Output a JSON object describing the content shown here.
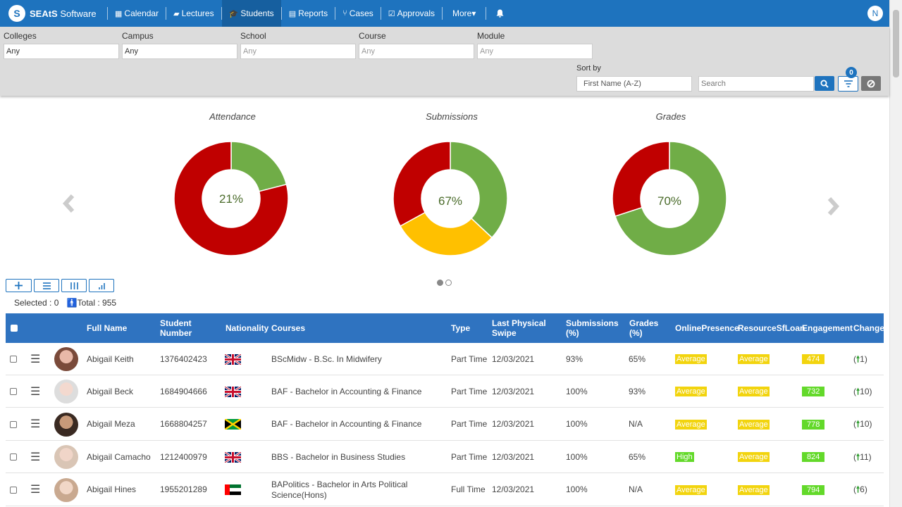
{
  "app": {
    "logo_bold": "SEAtS",
    "logo_rest": " Software",
    "user_initial": "N"
  },
  "nav": [
    {
      "icon": "calendar-icon",
      "glyph": "▦",
      "label": "Calendar"
    },
    {
      "icon": "lectures-icon",
      "glyph": "▰",
      "label": "Lectures"
    },
    {
      "icon": "students-icon",
      "glyph": "🎓",
      "label": "Students"
    },
    {
      "icon": "reports-icon",
      "glyph": "▤",
      "label": "Reports"
    },
    {
      "icon": "cases-icon",
      "glyph": "⑂",
      "label": "Cases"
    },
    {
      "icon": "approvals-icon",
      "glyph": "☑",
      "label": "Approvals"
    },
    {
      "icon": "more-icon",
      "glyph": "",
      "label": "More▾"
    }
  ],
  "filters": {
    "colleges": {
      "label": "Colleges",
      "value": "Any"
    },
    "campus": {
      "label": "Campus",
      "value": "Any"
    },
    "school": {
      "label": "School",
      "placeholder": "Any"
    },
    "course": {
      "label": "Course",
      "placeholder": "Any"
    },
    "module": {
      "label": "Module",
      "placeholder": "Any"
    },
    "sort_by": {
      "label": "Sort by",
      "value": "First Name (A-Z)"
    },
    "search": {
      "placeholder": "Search"
    },
    "filter_count": "0"
  },
  "charts": {
    "attendance": {
      "title": "Attendance",
      "label": "21%"
    },
    "submissions": {
      "title": "Submissions",
      "label": "67%"
    },
    "grades": {
      "title": "Grades",
      "label": "70%"
    }
  },
  "chart_data": [
    {
      "type": "pie",
      "title": "Attendance",
      "center_label": "21%",
      "slices": [
        {
          "color": "#70ad47",
          "value": 21
        },
        {
          "color": "#c00000",
          "value": 79
        }
      ]
    },
    {
      "type": "pie",
      "title": "Submissions",
      "center_label": "67%",
      "slices": [
        {
          "color": "#70ad47",
          "value": 37
        },
        {
          "color": "#ffc000",
          "value": 30
        },
        {
          "color": "#c00000",
          "value": 33
        }
      ]
    },
    {
      "type": "pie",
      "title": "Grades",
      "center_label": "70%",
      "slices": [
        {
          "color": "#70ad47",
          "value": 70
        },
        {
          "color": "#c00000",
          "value": 30
        }
      ]
    }
  ],
  "list": {
    "selected": "Selected : 0",
    "total": "Total : 955"
  },
  "table": {
    "headers": {
      "full_name": "Full Name",
      "student_number": "Student Number",
      "nationality": "Nationality",
      "courses": "Courses",
      "type": "Type",
      "last_swipe": "Last Physical Swipe",
      "submissions": "Submissions (%)",
      "grades": "Grades (%)",
      "online": "OnlinePresence",
      "resource": "ResourceSfLoan",
      "engagement": "Engagement",
      "change": "Change"
    },
    "rows": [
      {
        "name": "Abigail Keith",
        "number": "1376402423",
        "flag": "uk",
        "course": "BScMidw - B.Sc. In Midwifery",
        "type": "Part Time",
        "swipe": "12/03/2021",
        "submissions": "93%",
        "grades": "65%",
        "online": "Average",
        "resource": "Average",
        "engagement": "474",
        "eng_color": "yellow",
        "change": "1"
      },
      {
        "name": "Abigail Beck",
        "number": "1684904666",
        "flag": "uk",
        "course": "BAF - Bachelor in Accounting & Finance",
        "type": "Part Time",
        "swipe": "12/03/2021",
        "submissions": "100%",
        "grades": "93%",
        "online": "Average",
        "resource": "Average",
        "engagement": "732",
        "eng_color": "green",
        "change": "10"
      },
      {
        "name": "Abigail Meza",
        "number": "1668804257",
        "flag": "jm",
        "course": "BAF - Bachelor in Accounting & Finance",
        "type": "Part Time",
        "swipe": "12/03/2021",
        "submissions": "100%",
        "grades": "N/A",
        "online": "Average",
        "resource": "Average",
        "engagement": "778",
        "eng_color": "green",
        "change": "10"
      },
      {
        "name": "Abigail Camacho",
        "number": "1212400979",
        "flag": "uk",
        "course": "BBS - Bachelor in Business Studies",
        "type": "Part Time",
        "swipe": "12/03/2021",
        "submissions": "100%",
        "grades": "65%",
        "online": "High",
        "resource": "Average",
        "engagement": "824",
        "eng_color": "green",
        "change": "11"
      },
      {
        "name": "Abigail Hines",
        "number": "1955201289",
        "flag": "ae",
        "course": "BAPolitics - Bachelor in Arts Political Science(Hons)",
        "type": "Full Time",
        "swipe": "12/03/2021",
        "submissions": "100%",
        "grades": "N/A",
        "online": "Average",
        "resource": "Average",
        "engagement": "794",
        "eng_color": "green",
        "change": "6"
      }
    ]
  }
}
